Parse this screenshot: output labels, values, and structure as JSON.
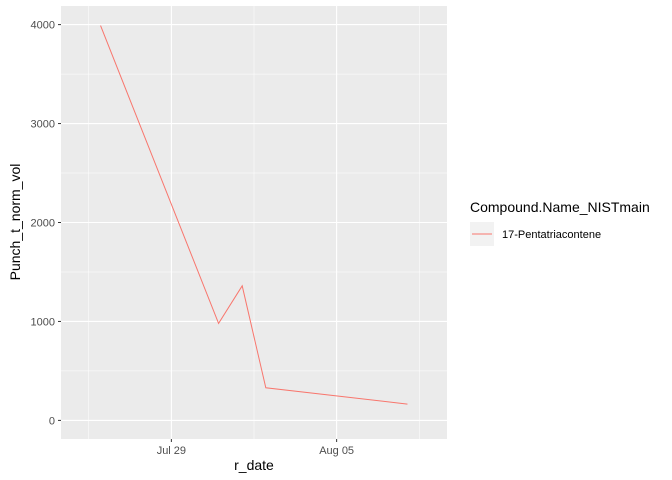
{
  "chart_data": {
    "type": "line",
    "title": "",
    "xlabel": "r_date",
    "ylabel": "Punch_t_norm_vol",
    "x_type": "date",
    "xlim": [
      "2024-07-25",
      "2024-08-09"
    ],
    "ylim": [
      0,
      4000
    ],
    "x_ticks": [
      {
        "value": "2024-07-29",
        "label": "Jul 29"
      },
      {
        "value": "2024-08-05",
        "label": "Aug 05"
      }
    ],
    "y_ticks": [
      {
        "value": 0,
        "label": "0"
      },
      {
        "value": 1000,
        "label": "1000"
      },
      {
        "value": 2000,
        "label": "2000"
      },
      {
        "value": 3000,
        "label": "3000"
      },
      {
        "value": 4000,
        "label": "4000"
      }
    ],
    "grid": true,
    "legend": {
      "title": "Compound.Name_NISTmain",
      "position": "right"
    },
    "series": [
      {
        "name": "17-Pentatriacontene",
        "color": "#f8766d",
        "points": [
          {
            "x": "2024-07-26",
            "y": 3990
          },
          {
            "x": "2024-07-31",
            "y": 980
          },
          {
            "x": "2024-08-01",
            "y": 1360
          },
          {
            "x": "2024-08-02",
            "y": 330
          },
          {
            "x": "2024-08-08",
            "y": 165
          }
        ]
      }
    ]
  }
}
